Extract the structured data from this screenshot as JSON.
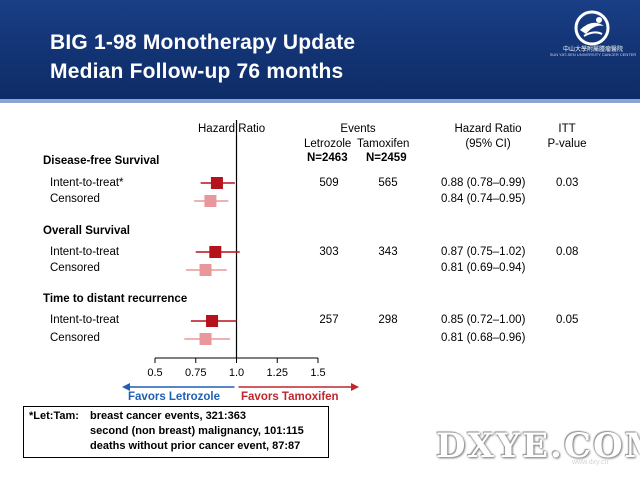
{
  "header": {
    "title_line1": "BIG 1-98 Monotherapy Update",
    "title_line2": "Median Follow-up 76 months",
    "logo_icon": "sun-yat-sen-cancer-center-logo",
    "logo_text": "中山大學附屬腫瘤醫院",
    "logo_subtext": "SUN YAT-SEN UNIVERSITY CANCER CENTER",
    "bg_color": "#123373"
  },
  "table": {
    "hazard_ratio_header": "Hazard Ratio",
    "events_header": "Events",
    "letrozole_header": "Letrozole",
    "tamoxifen_header": "Tamoxifen",
    "letrozole_n": "N=2463",
    "tamoxifen_n": "N=2459",
    "hr_ci_header": "Hazard Ratio",
    "hr_ci_subheader": "(95% CI)",
    "itt_header": "ITT",
    "pvalue_header": "P-value",
    "sections": [
      {
        "title": "Disease-free Survival",
        "rows": [
          {
            "label": "Intent-to-treat*",
            "letrozole": "509",
            "tamoxifen": "565",
            "hr_text": "0.88 (0.78–0.99)",
            "p": "0.03"
          },
          {
            "label": "Censored",
            "letrozole": "",
            "tamoxifen": "",
            "hr_text": "0.84 (0.74–0.95)",
            "p": ""
          }
        ]
      },
      {
        "title": "Overall Survival",
        "rows": [
          {
            "label": "Intent-to-treat",
            "letrozole": "303",
            "tamoxifen": "343",
            "hr_text": "0.87 (0.75–1.02)",
            "p": "0.08"
          },
          {
            "label": "Censored",
            "letrozole": "",
            "tamoxifen": "",
            "hr_text": "0.81 (0.69–0.94)",
            "p": ""
          }
        ]
      },
      {
        "title": "Time to distant recurrence",
        "rows": [
          {
            "label": "Intent-to-treat",
            "letrozole": "257",
            "tamoxifen": "298",
            "hr_text": "0.85 (0.72–1.00)",
            "p": "0.05"
          },
          {
            "label": "Censored",
            "letrozole": "",
            "tamoxifen": "",
            "hr_text": "0.81 (0.68–0.96)",
            "p": ""
          }
        ]
      }
    ]
  },
  "chart_data": {
    "type": "forest",
    "xlim": [
      0.5,
      1.5
    ],
    "xticks": [
      "0.5",
      "0.75",
      "1.0",
      "1.25",
      "1.5"
    ],
    "reference_line": 1.0,
    "rows": [
      {
        "label": "Disease-free Survival / Intent-to-treat*",
        "hr": 0.88,
        "lo": 0.78,
        "hi": 0.99,
        "kind": "itt"
      },
      {
        "label": "Disease-free Survival / Censored",
        "hr": 0.84,
        "lo": 0.74,
        "hi": 0.95,
        "kind": "censored"
      },
      {
        "label": "Overall Survival / Intent-to-treat",
        "hr": 0.87,
        "lo": 0.75,
        "hi": 1.02,
        "kind": "itt"
      },
      {
        "label": "Overall Survival / Censored",
        "hr": 0.81,
        "lo": 0.69,
        "hi": 0.94,
        "kind": "censored"
      },
      {
        "label": "Time to distant recurrence / Intent-to-treat",
        "hr": 0.85,
        "lo": 0.72,
        "hi": 1.0,
        "kind": "itt"
      },
      {
        "label": "Time to distant recurrence / Censored",
        "hr": 0.81,
        "lo": 0.68,
        "hi": 0.96,
        "kind": "censored"
      }
    ],
    "colors": {
      "itt": "#b5121b",
      "censored": "#e8979b"
    },
    "favors_left": "Favors Letrozole",
    "favors_right": "Favors Tamoxifen",
    "favors_left_color": "#1f5fb5",
    "favors_right_color": "#c0262c"
  },
  "footnote": {
    "prefix": "*Let:Tam:",
    "line1": "breast cancer events, 321:363",
    "line2": "second (non breast) malignancy, 101:115",
    "line3": "deaths without prior cancer event, 87:87"
  },
  "watermark": {
    "text": "DXYE.COM",
    "subtext": "www.dxy.cn"
  }
}
